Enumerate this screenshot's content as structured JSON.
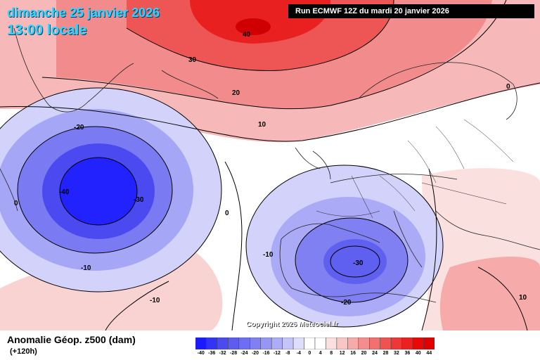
{
  "header": {
    "date": "dimanche 25 janvier 2026",
    "time": "13:00 locale",
    "run": "Run ECMWF 12Z du mardi 20 janvier 2026"
  },
  "footer": {
    "copyright": "Copyright 2026 Meteociel.fr",
    "variable": "Anomalie Géop. z500 (dam)",
    "lead": "(+120h)"
  },
  "scale": {
    "ticks": [
      "-40",
      "-36",
      "-32",
      "-28",
      "-24",
      "-20",
      "-16",
      "-12",
      "-8",
      "-4",
      "0",
      "4",
      "8",
      "12",
      "16",
      "20",
      "24",
      "28",
      "32",
      "36",
      "40",
      "44"
    ],
    "colors": [
      "#1a1aff",
      "#3333f5",
      "#4a4af0",
      "#5c5cf0",
      "#6e6ef2",
      "#8080f2",
      "#9696f5",
      "#adadf7",
      "#c4c4f9",
      "#dedefc",
      "#ffffff",
      "#ffffff",
      "#fbe0e0",
      "#f9c6c6",
      "#f6aaaa",
      "#f48e8e",
      "#f27070",
      "#f05252",
      "#ee3838",
      "#ec2020",
      "#e80808",
      "#e00000"
    ]
  },
  "contour_labels": [
    "40",
    "30",
    "20",
    "10",
    "0",
    "0",
    "-20",
    "-40",
    "-30",
    "0",
    "-10",
    "-10",
    "-30",
    "-20",
    "-10",
    "10"
  ]
}
